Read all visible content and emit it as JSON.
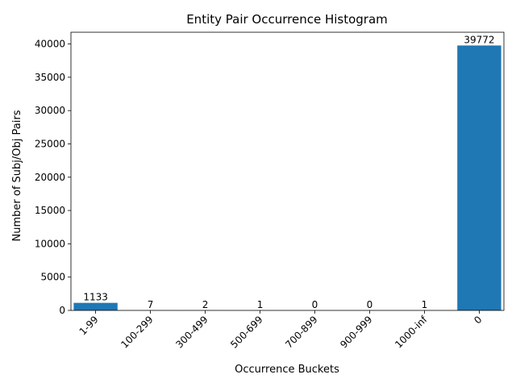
{
  "chart_data": {
    "type": "bar",
    "title": "Entity Pair Occurrence Histogram",
    "xlabel": "Occurrence Buckets",
    "ylabel": "Number of Subj/Obj Pairs",
    "categories": [
      "1-99",
      "100-299",
      "300-499",
      "500-699",
      "700-899",
      "900-999",
      "1000-inf",
      "0"
    ],
    "values": [
      1133,
      7,
      2,
      1,
      0,
      0,
      1,
      39772
    ],
    "ylim": [
      0,
      41760
    ],
    "yticks": [
      0,
      5000,
      10000,
      15000,
      20000,
      25000,
      30000,
      35000,
      40000
    ],
    "bar_color": "#1f77b4",
    "grid": false,
    "legend": "none"
  }
}
